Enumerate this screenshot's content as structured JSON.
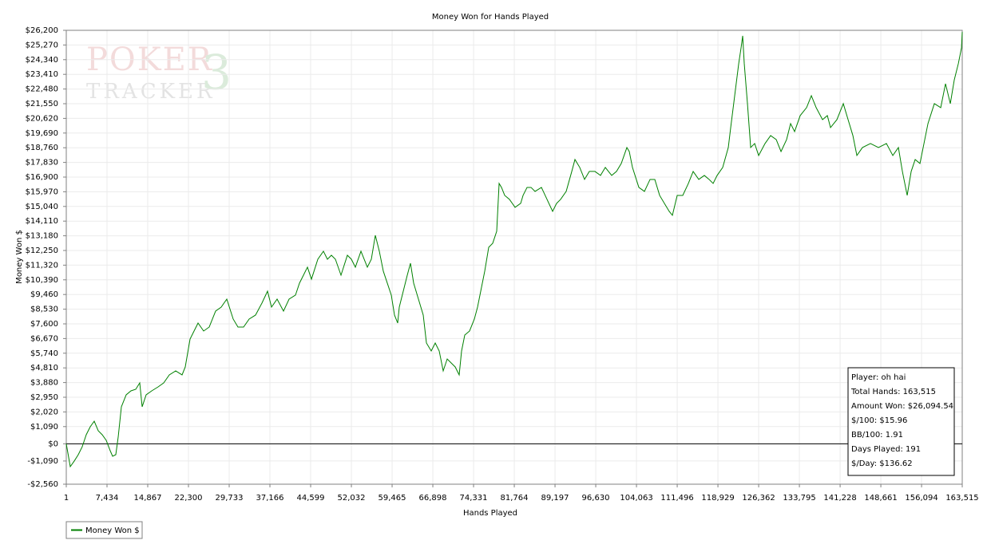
{
  "chart_data": {
    "type": "line",
    "title": "Money Won for Hands Played",
    "x_label": "Hands Played",
    "y_label": "Money Won $",
    "watermark": {
      "top": "POKER",
      "bottom": "TRACKER",
      "mark": "3"
    },
    "xlim": [
      1,
      163515
    ],
    "ylim": [
      -2560,
      26200
    ],
    "grid": true,
    "zero_line": true,
    "legend": "bottom-left",
    "xticks": [
      1,
      {
        "value": 7434,
        "label": "7,434"
      },
      {
        "value": 14867,
        "label": "14,867"
      },
      {
        "value": 22300,
        "label": "22,300"
      },
      {
        "value": 29733,
        "label": "29,733"
      },
      {
        "value": 37166,
        "label": "37,166"
      },
      {
        "value": 44599,
        "label": "44,599"
      },
      {
        "value": 52032,
        "label": "52,032"
      },
      {
        "value": 59465,
        "label": "59,465"
      },
      {
        "value": 66898,
        "label": "66,898"
      },
      {
        "value": 74331,
        "label": "74,331"
      },
      {
        "value": 81764,
        "label": "81,764"
      },
      {
        "value": 89197,
        "label": "89,197"
      },
      {
        "value": 96630,
        "label": "96,630"
      },
      {
        "value": 104063,
        "label": "104,063"
      },
      {
        "value": 111496,
        "label": "111,496"
      },
      {
        "value": 118929,
        "label": "118,929"
      },
      {
        "value": 126362,
        "label": "126,362"
      },
      {
        "value": 133795,
        "label": "133,795"
      },
      {
        "value": 141228,
        "label": "141,228"
      },
      {
        "value": 148661,
        "label": "148,661"
      },
      {
        "value": 156094,
        "label": "156,094"
      },
      {
        "value": 163515,
        "label": "163,515"
      }
    ],
    "yticks": [
      {
        "value": -2560,
        "label": "-$2,560"
      },
      {
        "value": -1090,
        "label": "-$1,090"
      },
      {
        "value": 0,
        "label": "$0"
      },
      {
        "value": 1090,
        "label": "$1,090"
      },
      {
        "value": 2020,
        "label": "$2,020"
      },
      {
        "value": 2950,
        "label": "$2,950"
      },
      {
        "value": 3880,
        "label": "$3,880"
      },
      {
        "value": 4810,
        "label": "$4,810"
      },
      {
        "value": 5740,
        "label": "$5,740"
      },
      {
        "value": 6670,
        "label": "$6,670"
      },
      {
        "value": 7600,
        "label": "$7,600"
      },
      {
        "value": 8530,
        "label": "$8,530"
      },
      {
        "value": 9460,
        "label": "$9,460"
      },
      {
        "value": 10390,
        "label": "$10,390"
      },
      {
        "value": 11320,
        "label": "$11,320"
      },
      {
        "value": 12250,
        "label": "$12,250"
      },
      {
        "value": 13180,
        "label": "$13,180"
      },
      {
        "value": 14110,
        "label": "$14,110"
      },
      {
        "value": 15040,
        "label": "$15,040"
      },
      {
        "value": 15970,
        "label": "$15,970"
      },
      {
        "value": 16900,
        "label": "$16,900"
      },
      {
        "value": 17830,
        "label": "$17,830"
      },
      {
        "value": 18760,
        "label": "$18,760"
      },
      {
        "value": 19690,
        "label": "$19,690"
      },
      {
        "value": 20620,
        "label": "$20,620"
      },
      {
        "value": 21550,
        "label": "$21,550"
      },
      {
        "value": 22480,
        "label": "$22,480"
      },
      {
        "value": 23410,
        "label": "$23,410"
      },
      {
        "value": 24340,
        "label": "$24,340"
      },
      {
        "value": 25270,
        "label": "$25,270"
      },
      {
        "value": 26200,
        "label": "$26,200"
      }
    ],
    "x": [
      1,
      730,
      1458,
      2187,
      2916,
      3644,
      4373,
      5102,
      5831,
      6559,
      7288,
      8017,
      8454,
      9037,
      9474,
      10057,
      10932,
      11806,
      12681,
      13409,
      13847,
      14575,
      15596,
      16762,
      17782,
      18802,
      19968,
      21134,
      21717,
      22591,
      23320,
      24049,
      25069,
      26089,
      27255,
      28275,
      29296,
      30462,
      31336,
      32356,
      33376,
      34542,
      35708,
      36728,
      37457,
      38477,
      39643,
      40663,
      41829,
      42558,
      43287,
      44015,
      44744,
      45910,
      46930,
      47659,
      48387,
      49116,
      50136,
      51302,
      52031,
      52760,
      53780,
      54946,
      55674,
      56403,
      57132,
      57860,
      58589,
      59318,
      59901,
      60484,
      60775,
      61504,
      62233,
      62816,
      63399,
      64273,
      65147,
      65730,
      66605,
      67334,
      68062,
      68791,
      69520,
      70248,
      70977,
      71706,
      72143,
      72726,
      73600,
      74475,
      75058,
      75786,
      76369,
      77098,
      77827,
      78555,
      78993,
      79430,
      80013,
      80887,
      81907,
      82928,
      83365,
      84094,
      84822,
      85551,
      86717,
      87737,
      88757,
      89486,
      90216,
      91236,
      92254,
      92837,
      93711,
      94586,
      95460,
      96481,
      97501,
      98376,
      99542,
      100416,
      101291,
      102311,
      102748,
      103331,
      104497,
      105517,
      106537,
      107412,
      108287,
      109161,
      110036,
      110619,
      111493,
      112513,
      113534,
      114408,
      115428,
      116449,
      117323,
      118052,
      118781,
      119801,
      120821,
      121258,
      121987,
      122716,
      123153,
      123445,
      123736,
      124319,
      124902,
      125631,
      126360,
      127525,
      128546,
      129566,
      130440,
      131461,
      132190,
      132919,
      133939,
      135105,
      135979,
      136854,
      138019,
      138894,
      139477,
      140643,
      141809,
      142683,
      143558,
      144287,
      145307,
      146764,
      148222,
      149679,
      150845,
      151865,
      152594,
      153468,
      154197,
      154926,
      155800,
      156675,
      157258,
      158424,
      159590,
      160464,
      161339,
      162067,
      162796,
      163379,
      163515
    ],
    "series": [
      {
        "name": "Money Won $",
        "color": "#008000",
        "values": [
          0,
          -1448,
          -1090,
          -690,
          -184,
          574,
          1080,
          1433,
          827,
          574,
          220,
          -437,
          -791,
          -690,
          422,
          2343,
          3102,
          3354,
          3455,
          3860,
          2343,
          3102,
          3354,
          3607,
          3860,
          4366,
          4618,
          4366,
          4871,
          6640,
          7146,
          7651,
          7146,
          7398,
          8409,
          8662,
          9167,
          7904,
          7398,
          7398,
          7904,
          8157,
          8915,
          9673,
          8662,
          9167,
          8409,
          9167,
          9420,
          10179,
          10684,
          11190,
          10432,
          11695,
          12201,
          11695,
          11948,
          11695,
          10684,
          11948,
          11695,
          11190,
          12201,
          11190,
          11695,
          13212,
          12201,
          10937,
          10179,
          9420,
          8157,
          7651,
          8662,
          9673,
          10684,
          11442,
          10179,
          9167,
          8157,
          6387,
          5882,
          6387,
          5882,
          4618,
          5376,
          5124,
          4871,
          4366,
          5882,
          6893,
          7146,
          7904,
          8662,
          9926,
          10937,
          12454,
          12707,
          13465,
          16498,
          16245,
          15740,
          15487,
          14981,
          15234,
          15740,
          16245,
          16245,
          15993,
          16245,
          15487,
          14728,
          15234,
          15487,
          15993,
          17257,
          18015,
          17510,
          16751,
          17257,
          17257,
          17004,
          17510,
          17004,
          17257,
          17763,
          18774,
          18519,
          17510,
          16245,
          15993,
          16751,
          16751,
          15740,
          15234,
          14728,
          14476,
          15740,
          15740,
          16498,
          17257,
          16751,
          17004,
          16751,
          16498,
          17004,
          17510,
          18774,
          20036,
          22058,
          24080,
          25091,
          25849,
          24080,
          21553,
          18774,
          19027,
          18268,
          19027,
          19532,
          19279,
          18519,
          19279,
          20289,
          19783,
          20795,
          21301,
          22058,
          21301,
          20541,
          20795,
          20036,
          20541,
          21553,
          20541,
          19532,
          18268,
          18774,
          19027,
          18774,
          19027,
          18268,
          18774,
          17257,
          15740,
          17257,
          18015,
          17763,
          19279,
          20289,
          21553,
          21301,
          22817,
          21553,
          23069,
          24080,
          25091,
          26094.54
        ]
      }
    ],
    "info_box": [
      "Player: oh hai",
      "Total Hands: 163,515",
      "Amount Won: $26,094.54",
      "$/100: $15.96",
      "BB/100: 1.91",
      "Days Played: 191",
      "$/Day: $136.62"
    ]
  }
}
